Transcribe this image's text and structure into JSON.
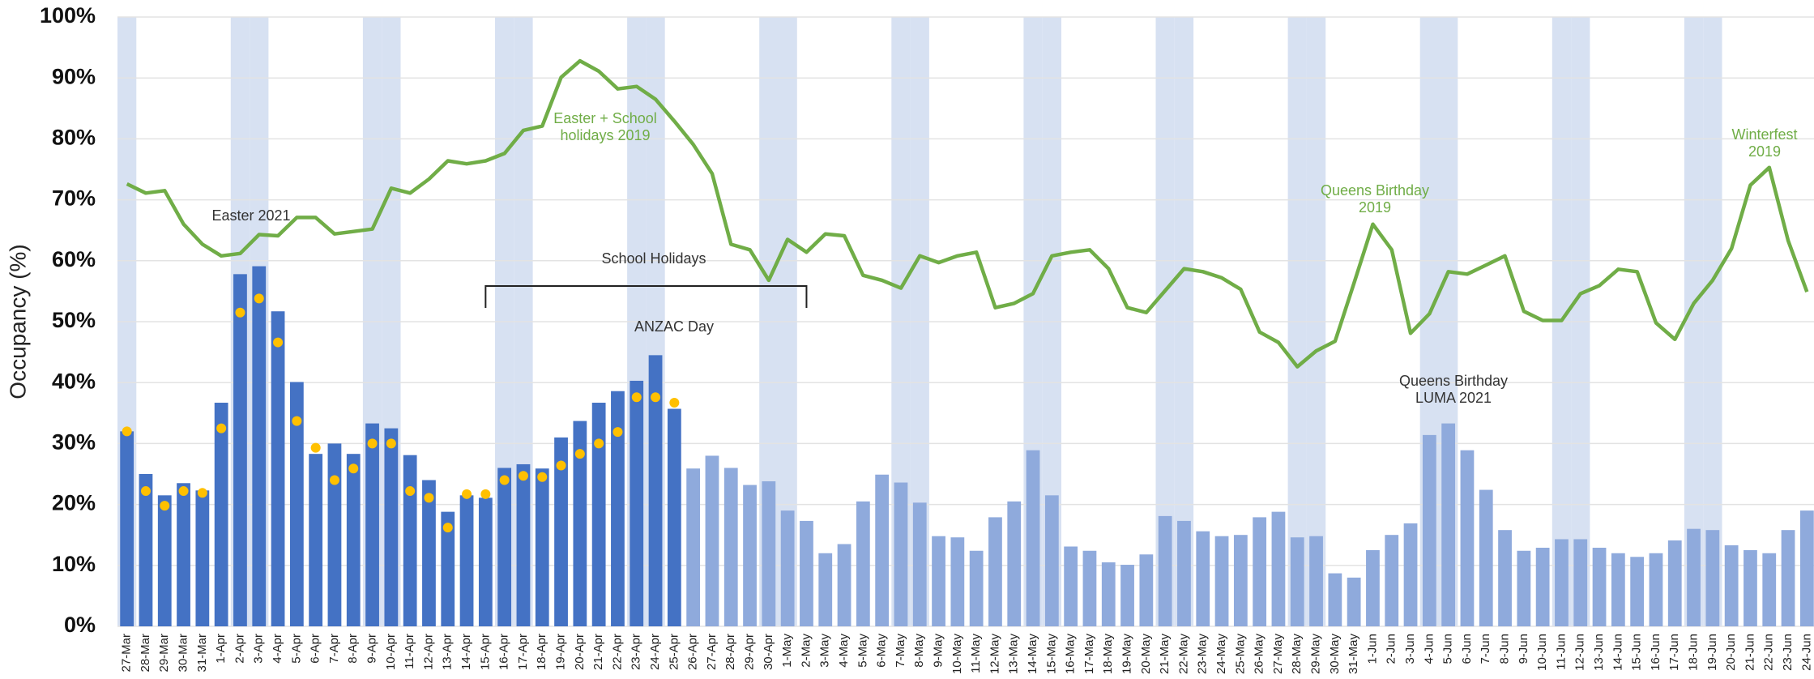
{
  "chart_data": {
    "type": "bar",
    "ylabel": "Occupancy (%)",
    "ylim": [
      0,
      100
    ],
    "yticks": [
      {
        "value": 0,
        "label": "0%"
      },
      {
        "value": 10,
        "label": "10%"
      },
      {
        "value": 20,
        "label": "20%"
      },
      {
        "value": 30,
        "label": "30%"
      },
      {
        "value": 40,
        "label": "40%"
      },
      {
        "value": 50,
        "label": "50%"
      },
      {
        "value": 60,
        "label": "60%"
      },
      {
        "value": 70,
        "label": "70%"
      },
      {
        "value": 80,
        "label": "80%"
      },
      {
        "value": 90,
        "label": "90%"
      },
      {
        "value": 100,
        "label": "100%"
      }
    ],
    "grid": true,
    "band_color": "#d7e1f2",
    "categories": [
      "27-Mar",
      "28-Mar",
      "29-Mar",
      "30-Mar",
      "31-Mar",
      "1-Apr",
      "2-Apr",
      "3-Apr",
      "4-Apr",
      "5-Apr",
      "6-Apr",
      "7-Apr",
      "8-Apr",
      "9-Apr",
      "10-Apr",
      "11-Apr",
      "12-Apr",
      "13-Apr",
      "14-Apr",
      "15-Apr",
      "16-Apr",
      "17-Apr",
      "18-Apr",
      "19-Apr",
      "20-Apr",
      "21-Apr",
      "22-Apr",
      "23-Apr",
      "24-Apr",
      "25-Apr",
      "26-Apr",
      "27-Apr",
      "28-Apr",
      "29-Apr",
      "30-Apr",
      "1-May",
      "2-May",
      "3-May",
      "4-May",
      "5-May",
      "6-May",
      "7-May",
      "8-May",
      "9-May",
      "10-May",
      "11-May",
      "12-May",
      "13-May",
      "14-May",
      "15-May",
      "16-May",
      "17-May",
      "18-May",
      "19-May",
      "20-May",
      "21-May",
      "22-May",
      "23-May",
      "24-May",
      "25-May",
      "26-May",
      "27-May",
      "28-May",
      "29-May",
      "30-May",
      "31-May",
      "1-Jun",
      "2-Jun",
      "3-Jun",
      "4-Jun",
      "5-Jun",
      "6-Jun",
      "7-Jun",
      "8-Jun",
      "9-Jun",
      "10-Jun",
      "11-Jun",
      "12-Jun",
      "13-Jun",
      "14-Jun",
      "15-Jun",
      "16-Jun",
      "17-Jun",
      "18-Jun",
      "19-Jun",
      "20-Jun",
      "21-Jun",
      "22-Jun",
      "23-Jun",
      "24-Jun"
    ],
    "series": [
      {
        "type": "bar",
        "color": "#4472c4",
        "values": [
          32,
          25,
          21.5,
          23.5,
          22.3,
          36.7,
          57.8,
          59.1,
          51.7,
          40.1,
          28.3,
          30,
          28.3,
          33.3,
          32.5,
          28.1,
          24,
          18.8,
          21.5,
          21.1,
          26,
          26.6,
          25.9,
          31,
          33.7,
          36.7,
          38.6,
          40.3,
          44.5,
          35.7,
          null,
          null,
          null,
          null,
          null,
          null,
          null,
          null,
          null,
          null,
          null,
          null,
          null,
          null,
          null,
          null,
          null,
          null,
          null,
          null,
          null,
          null,
          null,
          null,
          null,
          null,
          null,
          null,
          null,
          null,
          null,
          null,
          null,
          null,
          null,
          null,
          null,
          null,
          null,
          null,
          null,
          null,
          null,
          null,
          null,
          null,
          null,
          null,
          null,
          null,
          null,
          null,
          null,
          null,
          null,
          null,
          null,
          null,
          null,
          null
        ]
      },
      {
        "type": "bar",
        "color": "#8faadc",
        "values": [
          null,
          null,
          null,
          null,
          null,
          null,
          null,
          null,
          null,
          null,
          null,
          null,
          null,
          null,
          null,
          null,
          null,
          null,
          null,
          null,
          null,
          null,
          null,
          null,
          null,
          null,
          null,
          null,
          null,
          null,
          25.9,
          28,
          26,
          23.2,
          23.8,
          19,
          17.3,
          12,
          13.5,
          20.5,
          24.9,
          23.6,
          20.3,
          14.8,
          14.6,
          12.4,
          17.9,
          20.5,
          28.9,
          21.5,
          13.1,
          12.4,
          10.5,
          10.1,
          11.8,
          18.1,
          17.3,
          15.6,
          14.8,
          15,
          17.9,
          18.8,
          14.6,
          14.8,
          8.7,
          8,
          12.5,
          15,
          16.9,
          31.4,
          33.3,
          28.9,
          22.4,
          15.8,
          12.4,
          12.9,
          14.3,
          14.3,
          12.9,
          12,
          11.4,
          12,
          14.1,
          16,
          15.8,
          13.3,
          12.5,
          12,
          15.8,
          19
        ]
      },
      {
        "type": "line",
        "color": "#70ad47",
        "values": [
          72.6,
          71.1,
          71.5,
          66,
          62.7,
          60.8,
          61.2,
          64.3,
          64.1,
          67.1,
          67.1,
          64.4,
          64.8,
          65.2,
          71.9,
          71.1,
          73.4,
          76.4,
          75.9,
          76.4,
          77.6,
          81.4,
          82.1,
          90.1,
          92.8,
          91.1,
          88.2,
          88.6,
          86.5,
          82.9,
          79.1,
          74.3,
          62.7,
          61.8,
          56.8,
          63.5,
          61.4,
          64.4,
          64.1,
          57.6,
          56.8,
          55.5,
          60.8,
          59.7,
          60.8,
          61.4,
          52.3,
          53,
          54.6,
          60.8,
          61.4,
          61.8,
          58.7,
          52.3,
          51.5,
          55.1,
          58.7,
          58.2,
          57.2,
          55.3,
          48.3,
          46.6,
          42.6,
          45.2,
          46.8,
          56.3,
          66,
          61.8,
          48.1,
          51.3,
          58.2,
          57.8,
          59.3,
          60.8,
          51.7,
          50.2,
          50.2,
          54.6,
          55.9,
          58.6,
          58.2,
          49.8,
          47.1,
          53,
          56.8,
          62,
          72.4,
          75.3,
          63.3,
          54.9
        ]
      },
      {
        "type": "scatter",
        "color": "#ffc000",
        "values": [
          32,
          22.2,
          19.8,
          22.2,
          21.9,
          32.5,
          51.5,
          53.8,
          46.6,
          33.7,
          29.3,
          24,
          25.9,
          30,
          30,
          22.2,
          21.1,
          16.2,
          21.7,
          21.7,
          24,
          24.7,
          24.5,
          26.4,
          28.3,
          30,
          31.9,
          37.6,
          37.6,
          36.7,
          null,
          null,
          null,
          null,
          null,
          null,
          null,
          null,
          null,
          null,
          null,
          null,
          null,
          null,
          null,
          null,
          null,
          null,
          null,
          null,
          null,
          null,
          null,
          null,
          null,
          null,
          null,
          null,
          null,
          null,
          null,
          null,
          null,
          null,
          null,
          null,
          null,
          null,
          null,
          null,
          null,
          null,
          null,
          null,
          null,
          null,
          null,
          null,
          null,
          null,
          null,
          null,
          null,
          null,
          null,
          null,
          null,
          null,
          null,
          null
        ]
      }
    ],
    "annotations": [
      {
        "text": [
          "Easter 2021"
        ],
        "color": "#333333"
      },
      {
        "text": [
          "School Holidays"
        ],
        "color": "#333333"
      },
      {
        "text": [
          "ANZAC Day"
        ],
        "color": "#333333"
      },
      {
        "text": [
          "Easter + School",
          "holidays 2019"
        ],
        "color": "#70ad47"
      },
      {
        "text": [
          "Queens Birthday",
          "2019"
        ],
        "color": "#70ad47"
      },
      {
        "text": [
          "Winterfest",
          "2019"
        ],
        "color": "#70ad47"
      },
      {
        "text": [
          "Queens Birthday",
          "LUMA 2021"
        ],
        "color": "#333333"
      }
    ]
  }
}
